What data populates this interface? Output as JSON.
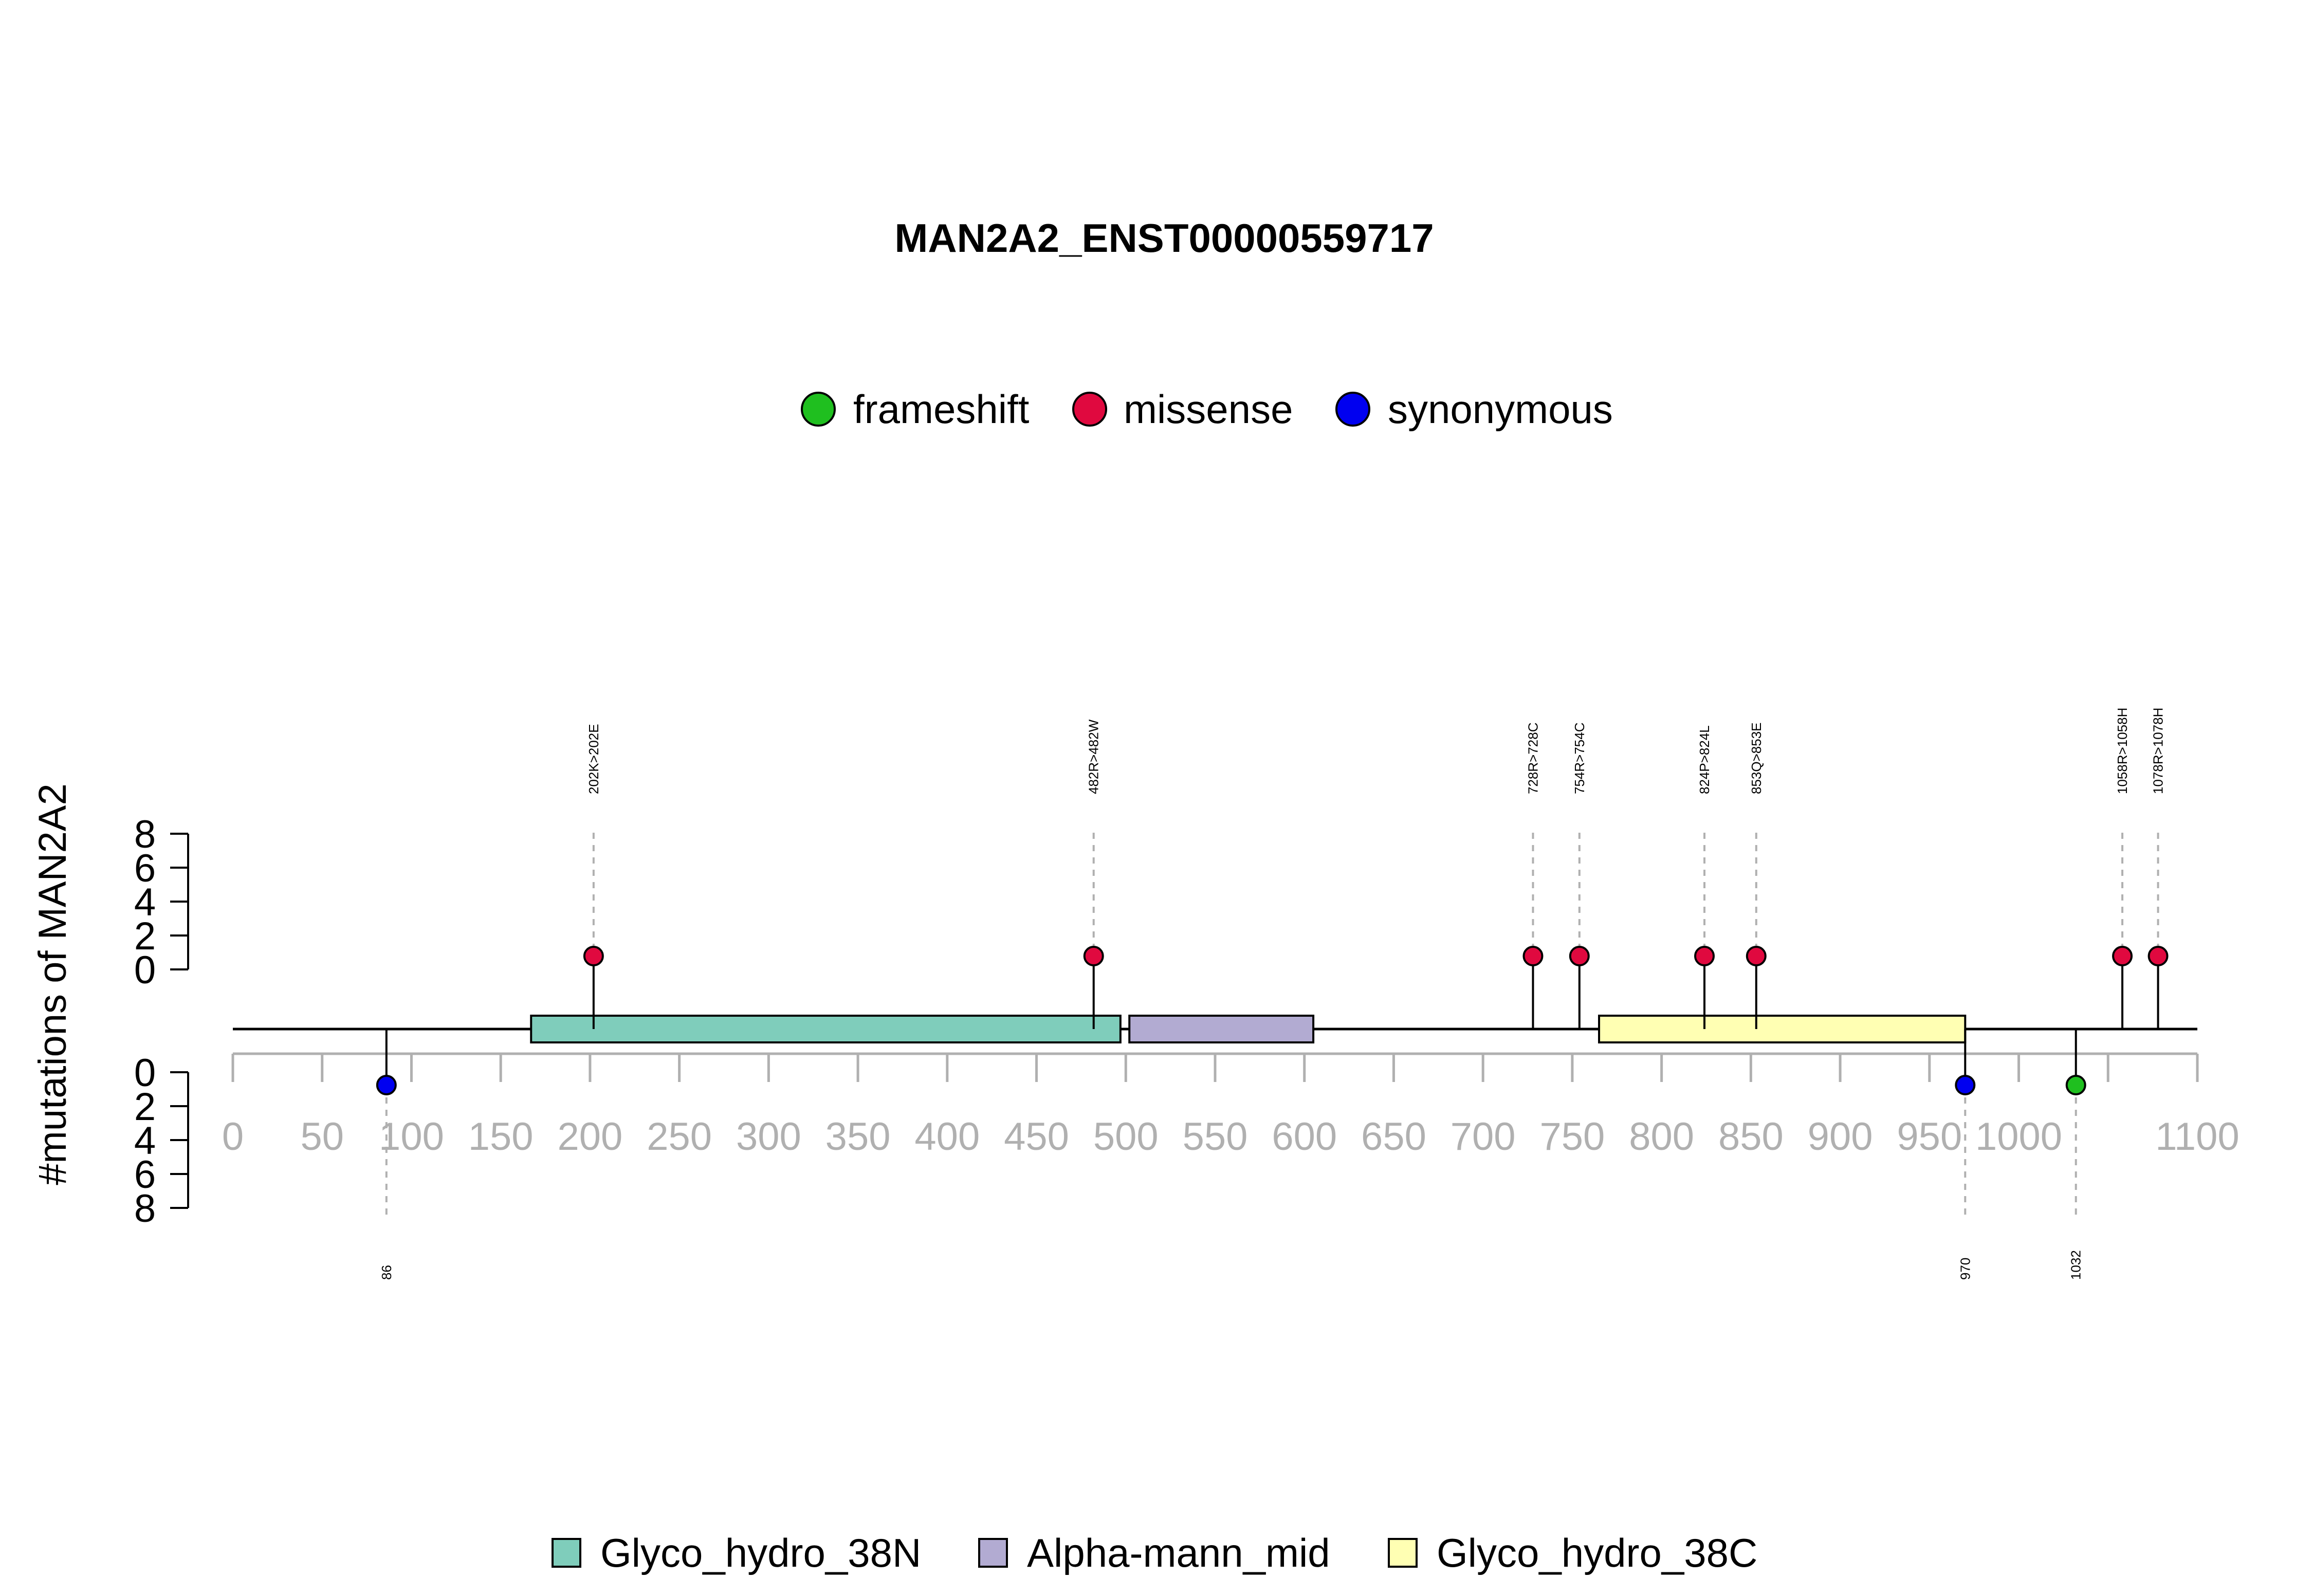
{
  "chart_data": {
    "type": "lollipop",
    "title": "MAN2A2_ENST00000559717",
    "ylabel": "#mutations of MAN2A2",
    "xlim": [
      0,
      1100
    ],
    "x_ticks": [
      0,
      50,
      100,
      150,
      200,
      250,
      300,
      350,
      400,
      450,
      500,
      550,
      600,
      650,
      700,
      750,
      800,
      850,
      900,
      950,
      1000,
      1100
    ],
    "x_minor_ticks": [
      1050
    ],
    "y_ticks": [
      0,
      2,
      4,
      6,
      8
    ],
    "ylim": [
      0,
      8
    ],
    "colors": {
      "frameshift": "#1fbf1f",
      "missense": "#e0093f",
      "synonymous": "#0000f0",
      "Glyco_hydro_38N": "#7fcdbb",
      "Alpha-mann_mid": "#b2abd2",
      "Glyco_hydro_38C": "#ffffb3"
    },
    "mutation_legend": [
      {
        "label": "frameshift",
        "color": "#1fbf1f"
      },
      {
        "label": "missense",
        "color": "#e0093f"
      },
      {
        "label": "synonymous",
        "color": "#0000f0"
      }
    ],
    "domain_legend": [
      {
        "label": "Glyco_hydro_38N",
        "color": "#7fcdbb"
      },
      {
        "label": "Alpha-mann_mid",
        "color": "#b2abd2"
      },
      {
        "label": "Glyco_hydro_38C",
        "color": "#ffffb3"
      }
    ],
    "domains": [
      {
        "name": "Glyco_hydro_38N",
        "start": 167,
        "end": 497
      },
      {
        "name": "Alpha-mann_mid",
        "start": 502,
        "end": 605
      },
      {
        "name": "Glyco_hydro_38C",
        "start": 765,
        "end": 970
      }
    ],
    "mutations_above": [
      {
        "position": 202,
        "label": "202K>202E",
        "type": "missense",
        "count": 1
      },
      {
        "position": 482,
        "label": "482R>482W",
        "type": "missense",
        "count": 1
      },
      {
        "position": 728,
        "label": "728R>728C",
        "type": "missense",
        "count": 1
      },
      {
        "position": 754,
        "label": "754R>754C",
        "type": "missense",
        "count": 1
      },
      {
        "position": 824,
        "label": "824P>824L",
        "type": "missense",
        "count": 1
      },
      {
        "position": 853,
        "label": "853Q>853E",
        "type": "missense",
        "count": 1
      },
      {
        "position": 1058,
        "label": "1058R>1058H",
        "type": "missense",
        "count": 1
      },
      {
        "position": 1078,
        "label": "1078R>1078H",
        "type": "missense",
        "count": 1
      }
    ],
    "mutations_below": [
      {
        "position": 86,
        "label": "86",
        "type": "synonymous",
        "count": 1
      },
      {
        "position": 970,
        "label": "970",
        "type": "synonymous",
        "count": 1
      },
      {
        "position": 1032,
        "label": "1032",
        "type": "frameshift",
        "count": 1
      }
    ]
  }
}
